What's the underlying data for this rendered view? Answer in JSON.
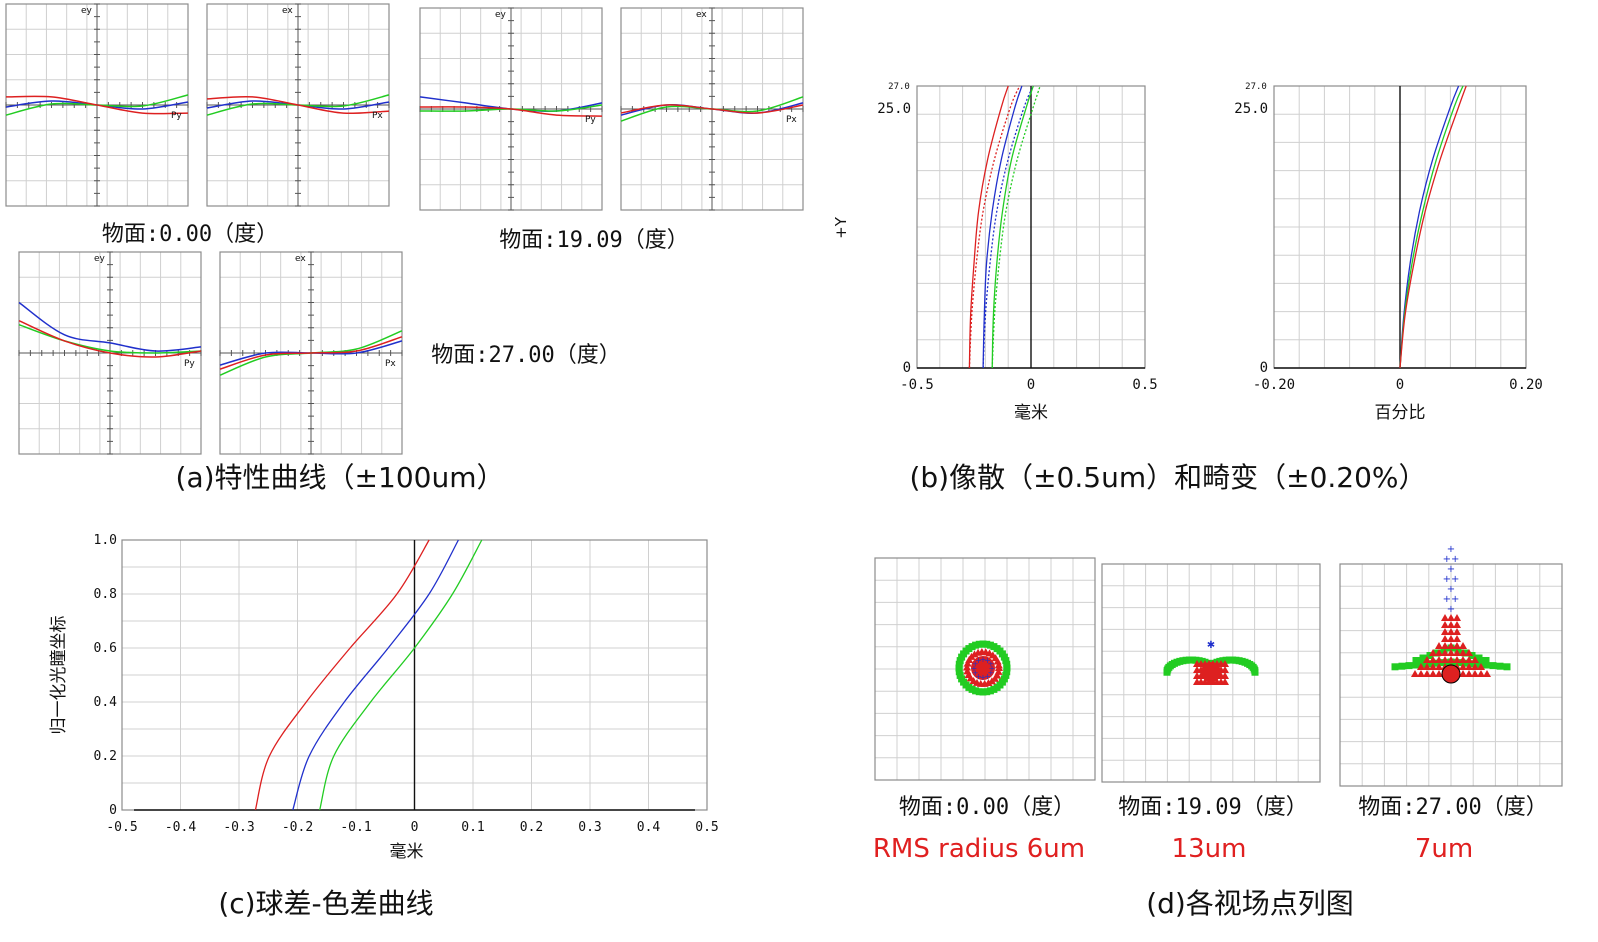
{
  "colors": {
    "red": "#dd2020",
    "green": "#22cc22",
    "blue": "#2030cc",
    "grid": "#d0d0d0",
    "frame": "#8c8c8c",
    "axis": "#111111",
    "rms_text": "#e02020"
  },
  "panel_a": {
    "caption": "(a)特性曲线（±100um）",
    "plot_labels": {
      "ey": "ey",
      "ex": "ex",
      "py": "Py",
      "px": "Px"
    },
    "field_labels": [
      "物面:0.00（度）",
      "物面:19.09（度）",
      "物面:27.00（度）"
    ],
    "chart_data": {
      "type": "line",
      "description_units": "normalized pupil coordinate vs transverse ray error (±100um full scale)",
      "x": [
        -1.0,
        -0.5,
        0.0,
        0.5,
        1.0
      ],
      "ylim": [
        -100,
        100
      ],
      "fields": [
        {
          "field": "0.00",
          "tangential": {
            "blue": [
              -2,
              4,
              0,
              -4,
              3
            ],
            "green": [
              -10,
              1,
              0,
              -1,
              10
            ],
            "red": [
              8,
              8,
              0,
              -8,
              -8
            ]
          },
          "sagittal": {
            "blue": [
              -3,
              4,
              0,
              -4,
              3
            ],
            "green": [
              -10,
              1,
              0,
              -1,
              10
            ],
            "red": [
              6,
              8,
              0,
              -8,
              -6
            ]
          }
        },
        {
          "field": "19.09",
          "tangential": {
            "blue": [
              12,
              6,
              0,
              -2,
              6
            ],
            "green": [
              -2,
              -2,
              0,
              -2,
              4
            ],
            "red": [
              2,
              2,
              0,
              -6,
              -7
            ]
          },
          "sagittal": {
            "blue": [
              -6,
              4,
              0,
              -4,
              6
            ],
            "green": [
              -12,
              2,
              0,
              -2,
              12
            ],
            "red": [
              -4,
              4,
              0,
              -4,
              4
            ]
          }
        },
        {
          "field": "27.00",
          "tangential": {
            "blue": [
              50,
              18,
              10,
              2,
              6
            ],
            "green": [
              28,
              12,
              2,
              0,
              2
            ],
            "red": [
              32,
              12,
              0,
              -4,
              2
            ]
          },
          "sagittal": {
            "blue": [
              -12,
              0,
              0,
              0,
              12
            ],
            "green": [
              -22,
              -4,
              0,
              4,
              22
            ],
            "red": [
              -16,
              -2,
              0,
              2,
              16
            ]
          }
        }
      ]
    }
  },
  "panel_b": {
    "caption": "(b)像散（±0.5um）和畸变（±0.20%）",
    "y_axis_label": "+Y",
    "astig": {
      "xlabel": "毫米",
      "xticks": [
        "-0.5",
        "0",
        "0.5"
      ],
      "yticks": [
        "0",
        "25.0"
      ],
      "ymax_label": "27.0",
      "chart_data": {
        "type": "line",
        "xlim": [
          -0.5,
          0.5
        ],
        "ylim": [
          0,
          27
        ],
        "y": [
          0,
          5,
          10,
          15,
          20,
          25,
          27
        ],
        "series": [
          {
            "color": "red",
            "style": "solid",
            "x": [
              -0.27,
              -0.265,
              -0.25,
              -0.23,
              -0.19,
              -0.13,
              -0.1
            ]
          },
          {
            "color": "red",
            "style": "dotted",
            "x": [
              -0.27,
              -0.26,
              -0.24,
              -0.21,
              -0.16,
              -0.09,
              -0.05
            ]
          },
          {
            "color": "blue",
            "style": "solid",
            "x": [
              -0.21,
              -0.205,
              -0.195,
              -0.17,
              -0.13,
              -0.07,
              -0.04
            ]
          },
          {
            "color": "blue",
            "style": "dotted",
            "x": [
              -0.21,
              -0.2,
              -0.18,
              -0.15,
              -0.1,
              -0.03,
              0.01
            ]
          },
          {
            "color": "green",
            "style": "solid",
            "x": [
              -0.17,
              -0.165,
              -0.15,
              -0.125,
              -0.085,
              -0.02,
              0.01
            ]
          },
          {
            "color": "green",
            "style": "dotted",
            "x": [
              -0.17,
              -0.16,
              -0.14,
              -0.11,
              -0.06,
              0.01,
              0.04
            ]
          }
        ]
      }
    },
    "distortion": {
      "xlabel": "百分比",
      "xticks": [
        "-0.20",
        "0",
        "0.20"
      ],
      "yticks": [
        "0",
        "25.0"
      ],
      "ymax_label": "27.0",
      "chart_data": {
        "type": "line",
        "xlim": [
          -0.2,
          0.2
        ],
        "ylim": [
          0,
          27
        ],
        "y": [
          0,
          5,
          10,
          15,
          20,
          25,
          27
        ],
        "series": [
          {
            "color": "blue",
            "x": [
              0,
              0.006,
              0.016,
              0.031,
              0.052,
              0.08,
              0.093
            ]
          },
          {
            "color": "green",
            "x": [
              0,
              0.007,
              0.019,
              0.036,
              0.058,
              0.086,
              0.1
            ]
          },
          {
            "color": "red",
            "x": [
              0,
              0.008,
              0.022,
              0.04,
              0.064,
              0.093,
              0.105
            ]
          }
        ]
      }
    }
  },
  "panel_c": {
    "caption": "(c)球差-色差曲线",
    "xlabel": "毫米",
    "ylabel": "归一化光瞳坐标",
    "xticks": [
      "-0.5",
      "-0.4",
      "-0.3",
      "-0.2",
      "-0.1",
      "0",
      "0.1",
      "0.2",
      "0.3",
      "0.4",
      "0.5"
    ],
    "yticks": [
      "0",
      "0.2",
      "0.4",
      "0.6",
      "0.8",
      "1.0"
    ],
    "chart_data": {
      "type": "line",
      "xlim": [
        -0.5,
        0.5
      ],
      "ylim": [
        0,
        1
      ],
      "y": [
        0,
        0.2,
        0.4,
        0.6,
        0.8,
        1.0
      ],
      "series": [
        {
          "color": "red",
          "x": [
            -0.272,
            -0.248,
            -0.185,
            -0.11,
            -0.03,
            0.025
          ]
        },
        {
          "color": "blue",
          "x": [
            -0.208,
            -0.18,
            -0.12,
            -0.045,
            0.025,
            0.075
          ]
        },
        {
          "color": "green",
          "x": [
            -0.162,
            -0.138,
            -0.075,
            0.0,
            0.065,
            0.115
          ]
        }
      ]
    }
  },
  "panel_d": {
    "caption": "(d)各视场点列图",
    "field_labels": [
      "物面:0.00（度）",
      "物面:19.09（度）",
      "物面:27.00（度）"
    ],
    "rms_labels": [
      "RMS radius  6um",
      "13um",
      "7um"
    ],
    "rms_um": [
      6,
      13,
      7
    ]
  }
}
